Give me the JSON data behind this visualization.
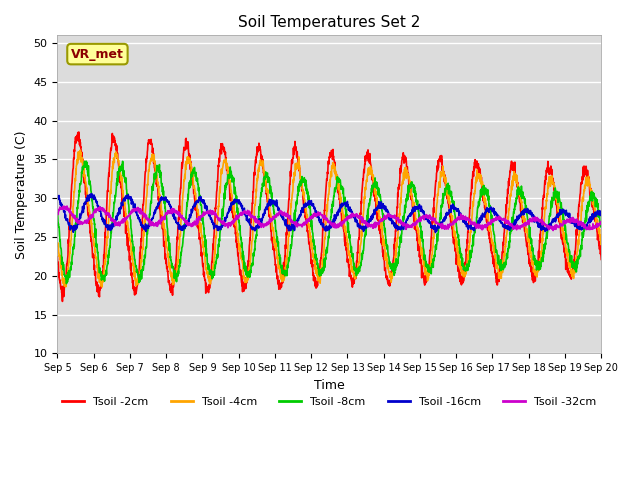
{
  "title": "Soil Temperatures Set 2",
  "xlabel": "Time",
  "ylabel": "Soil Temperature (C)",
  "ylim": [
    10,
    51
  ],
  "yticks": [
    10,
    15,
    20,
    25,
    30,
    35,
    40,
    45,
    50
  ],
  "plot_bg": "#dcdcdc",
  "fig_bg": "#ffffff",
  "annotation_text": "VR_met",
  "annotation_bbox": {
    "boxstyle": "round,pad=0.3",
    "facecolor": "#ffff99",
    "edgecolor": "#999900",
    "linewidth": 1.5
  },
  "series": [
    {
      "label": "Tsoil -2cm",
      "color": "#ff0000",
      "lw": 1.2
    },
    {
      "label": "Tsoil -4cm",
      "color": "#ffa500",
      "lw": 1.2
    },
    {
      "label": "Tsoil -8cm",
      "color": "#00cc00",
      "lw": 1.2
    },
    {
      "label": "Tsoil -16cm",
      "color": "#0000cc",
      "lw": 1.2
    },
    {
      "label": "Tsoil -32cm",
      "color": "#cc00cc",
      "lw": 1.2
    }
  ],
  "n_days": 15,
  "start_day": 5,
  "points_per_day": 144,
  "grid_color": "#ffffff",
  "grid_lw": 1.0
}
